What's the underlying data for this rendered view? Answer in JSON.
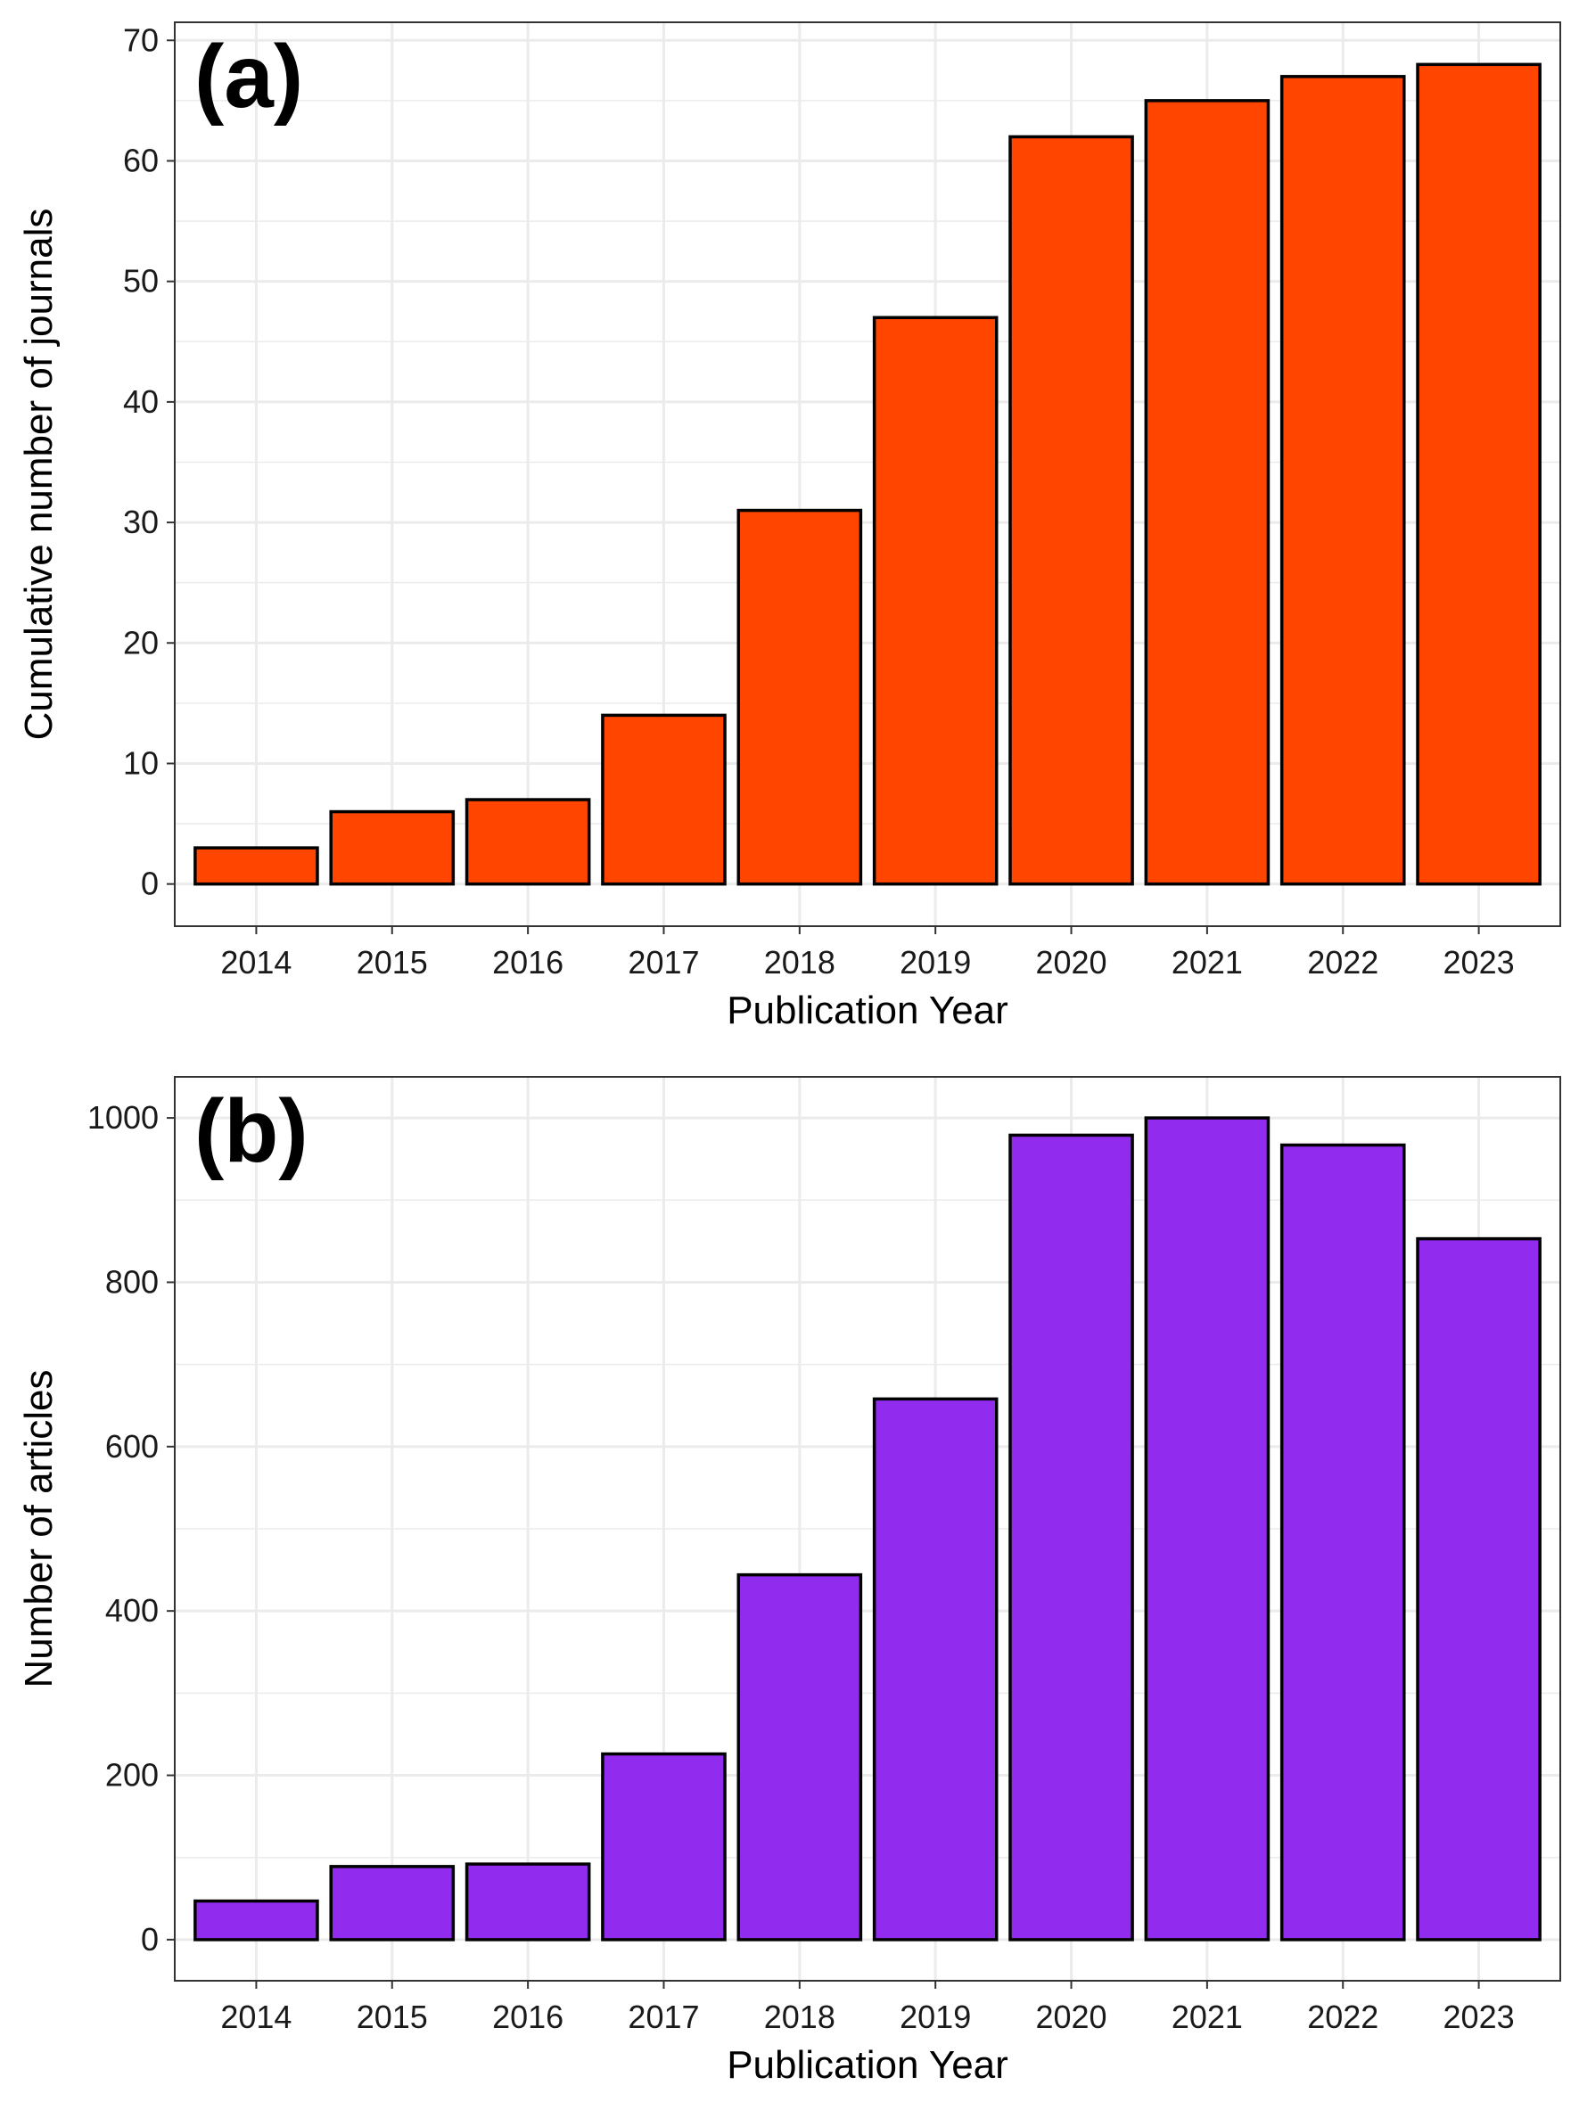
{
  "chart_data": [
    {
      "type": "bar",
      "panel_label": "(a)",
      "xlabel": "Publication Year",
      "ylabel": "Cumulative number of journals",
      "categories": [
        "2014",
        "2015",
        "2016",
        "2017",
        "2018",
        "2019",
        "2020",
        "2021",
        "2022",
        "2023"
      ],
      "values": [
        3,
        6,
        7,
        14,
        31,
        47,
        62,
        65,
        67,
        68
      ],
      "ylim": [
        -3.5,
        71.5
      ],
      "yticks": [
        0,
        10,
        20,
        30,
        40,
        50,
        60,
        70
      ],
      "bar_color": "#FF4500",
      "grid": true
    },
    {
      "type": "bar",
      "panel_label": "(b)",
      "xlabel": "Publication Year",
      "ylabel": "Number of articles",
      "categories": [
        "2014",
        "2015",
        "2016",
        "2017",
        "2018",
        "2019",
        "2020",
        "2021",
        "2022",
        "2023"
      ],
      "values": [
        47,
        89,
        92,
        226,
        444,
        658,
        979,
        1000,
        967,
        853
      ],
      "ylim": [
        -50,
        1050
      ],
      "yticks": [
        0,
        200,
        400,
        600,
        800,
        1000
      ],
      "bar_color": "#912CEE",
      "grid": true
    }
  ]
}
